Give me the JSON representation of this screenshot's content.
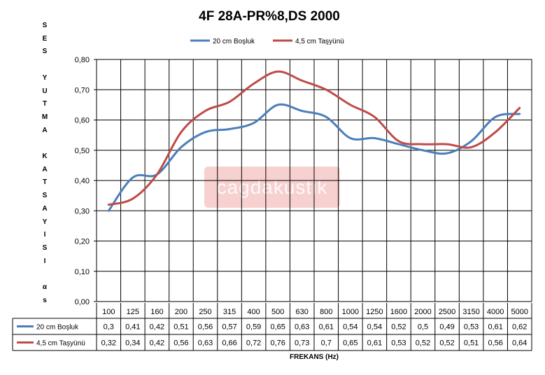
{
  "chart_data": {
    "type": "line",
    "title": "4F 28A-PR%8,DS 2000",
    "ylabel": "SES YUTMA KATSAYISI αs",
    "ylabel_letters": [
      "S",
      "E",
      "S",
      "",
      "Y",
      "U",
      "T",
      "M",
      "A",
      "",
      "K",
      "A",
      "T",
      "S",
      "A",
      "Y",
      "I",
      "S",
      "I",
      "",
      "α",
      "s"
    ],
    "xlabel": "FREKANS (Hz)",
    "ylim": [
      0,
      0.8
    ],
    "yticks": [
      "0,00",
      "0,10",
      "0,20",
      "0,30",
      "0,40",
      "0,50",
      "0,60",
      "0,70",
      "0,80"
    ],
    "categories": [
      "100",
      "125",
      "160",
      "200",
      "250",
      "315",
      "400",
      "500",
      "630",
      "800",
      "1000",
      "1250",
      "1600",
      "2000",
      "2500",
      "3150",
      "4000",
      "5000"
    ],
    "grid": true,
    "legend_position": "top",
    "series": [
      {
        "name": "20 cm Boşluk",
        "color": "#4a7ebb",
        "values": [
          0.3,
          0.41,
          0.42,
          0.51,
          0.56,
          0.57,
          0.59,
          0.65,
          0.63,
          0.61,
          0.54,
          0.54,
          0.52,
          0.5,
          0.49,
          0.53,
          0.61,
          0.62
        ],
        "labels": [
          "0,3",
          "0,41",
          "0,42",
          "0,51",
          "0,56",
          "0,57",
          "0,59",
          "0,65",
          "0,63",
          "0,61",
          "0,54",
          "0,54",
          "0,52",
          "0,5",
          "0,49",
          "0,53",
          "0,61",
          "0,62"
        ]
      },
      {
        "name": "4,5 cm Taşyünü",
        "color": "#be4b48",
        "values": [
          0.32,
          0.34,
          0.42,
          0.56,
          0.63,
          0.66,
          0.72,
          0.76,
          0.73,
          0.7,
          0.65,
          0.61,
          0.53,
          0.52,
          0.52,
          0.51,
          0.56,
          0.64
        ],
        "labels": [
          "0,32",
          "0,34",
          "0,42",
          "0,56",
          "0,63",
          "0,66",
          "0,72",
          "0,76",
          "0,73",
          "0,7",
          "0,65",
          "0,61",
          "0,53",
          "0,52",
          "0,52",
          "0,51",
          "0,56",
          "0,64"
        ]
      }
    ]
  },
  "watermark": "cagdakustik"
}
